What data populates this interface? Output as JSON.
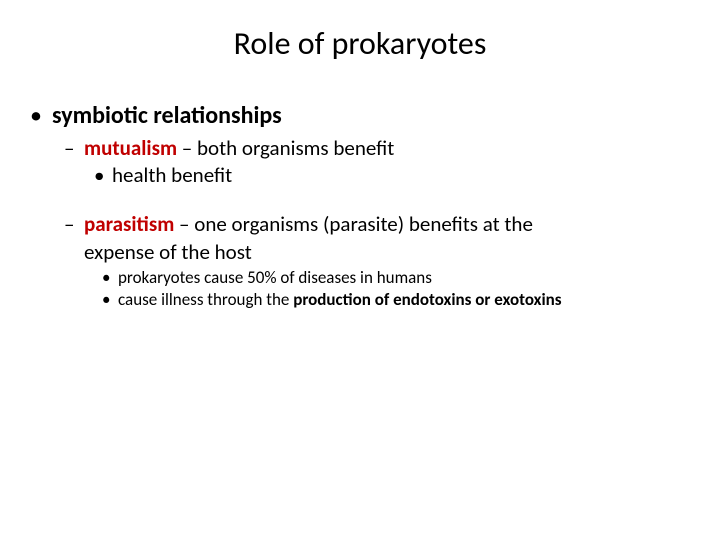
{
  "colors": {
    "red": "#c00000",
    "text": "#000000",
    "background": "#ffffff"
  },
  "typography": {
    "font_family": "Calibri, Arial, sans-serif",
    "title_fontsize": 32,
    "level1_fontsize": 24,
    "level2_fontsize": 21,
    "level3_fontsize": 21,
    "level3s_fontsize": 17
  },
  "title": "Role of prokaryotes",
  "l1": "symbiotic relationships",
  "mutualism": {
    "term": "mutualism",
    "rest": " – both organisms benefit",
    "sub1": "health benefit"
  },
  "parasitism": {
    "term": "parasitism",
    "rest": " – one organisms (parasite) benefits at the",
    "rest2": "expense of the host",
    "sub1": "prokaryotes cause 50% of diseases in humans",
    "sub2a": "cause illness through the ",
    "sub2b": "production of endotoxins or exotoxins"
  }
}
